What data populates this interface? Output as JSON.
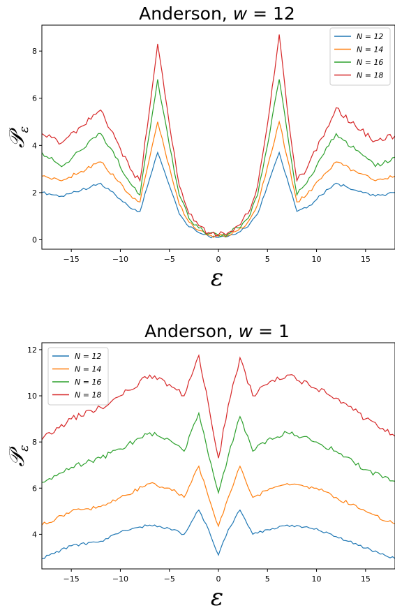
{
  "chart_data": [
    {
      "type": "line",
      "title": "Anderson, w = 12",
      "title_parts": {
        "prefix": "Anderson, ",
        "var": "w",
        "rest": " = 12"
      },
      "xlabel": "ε",
      "ylabel": "𝒫",
      "ylabel_sub": "ε",
      "xlim": [
        -18,
        18
      ],
      "ylim": [
        -0.4,
        9.1
      ],
      "xticks": [
        -15,
        -10,
        -5,
        0,
        5,
        10,
        15
      ],
      "xtick_labels": [
        "−15",
        "−10",
        "−5",
        "0",
        "5",
        "10",
        "15"
      ],
      "yticks": [
        0,
        2,
        4,
        6,
        8
      ],
      "ytick_labels": [
        "0",
        "2",
        "4",
        "6",
        "8"
      ],
      "grid": false,
      "legend_position": "top-right",
      "x": [
        -18,
        -16,
        -14,
        -12,
        -10.5,
        -9,
        -8,
        -7,
        -6.2,
        -5,
        -4,
        -3,
        -2,
        -1,
        0,
        1,
        2,
        3,
        4,
        5,
        6.2,
        7,
        8,
        9,
        10.5,
        12,
        14,
        16,
        18
      ],
      "series": [
        {
          "name": "N = 12",
          "color": "#1f77b4",
          "values": [
            2.0,
            1.85,
            2.1,
            2.4,
            1.9,
            1.35,
            1.2,
            2.6,
            3.7,
            2.3,
            1.1,
            0.55,
            0.3,
            0.15,
            0.1,
            0.15,
            0.3,
            0.55,
            1.1,
            2.3,
            3.7,
            2.6,
            1.2,
            1.35,
            1.9,
            2.4,
            2.1,
            1.85,
            2.0
          ]
        },
        {
          "name": "N = 14",
          "color": "#ff7f0e",
          "values": [
            2.7,
            2.5,
            2.9,
            3.3,
            2.6,
            1.9,
            1.6,
            3.5,
            5.0,
            3.1,
            1.5,
            0.75,
            0.4,
            0.2,
            0.15,
            0.2,
            0.4,
            0.75,
            1.5,
            3.1,
            5.0,
            3.5,
            1.6,
            1.9,
            2.6,
            3.3,
            2.9,
            2.5,
            2.7
          ]
        },
        {
          "name": "N = 16",
          "color": "#2ca02c",
          "values": [
            3.7,
            3.1,
            3.8,
            4.5,
            3.5,
            2.4,
            1.9,
            4.6,
            6.8,
            4.0,
            1.9,
            0.9,
            0.5,
            0.25,
            0.2,
            0.25,
            0.5,
            0.9,
            1.9,
            4.0,
            6.8,
            4.6,
            1.9,
            2.4,
            3.5,
            4.5,
            3.8,
            3.1,
            3.5
          ]
        },
        {
          "name": "N = 18",
          "color": "#d62728",
          "values": [
            4.5,
            4.1,
            4.8,
            5.5,
            4.3,
            3.0,
            2.5,
            5.6,
            8.3,
            4.9,
            2.3,
            1.1,
            0.6,
            0.3,
            0.2,
            0.3,
            0.6,
            1.1,
            2.3,
            4.9,
            8.7,
            5.6,
            2.5,
            3.0,
            4.3,
            5.6,
            4.8,
            4.2,
            4.4
          ]
        }
      ]
    },
    {
      "type": "line",
      "title": "Anderson, w = 1",
      "title_parts": {
        "prefix": "Anderson, ",
        "var": "w",
        "rest": " = 1"
      },
      "xlabel": "ε",
      "ylabel": "𝒫",
      "ylabel_sub": "ε",
      "xlim": [
        -18,
        18
      ],
      "ylim": [
        2.5,
        12.3
      ],
      "xticks": [
        -15,
        -10,
        -5,
        0,
        5,
        10,
        15
      ],
      "xtick_labels": [
        "−15",
        "−10",
        "−5",
        "0",
        "5",
        "10",
        "15"
      ],
      "yticks": [
        4,
        6,
        8,
        10,
        12
      ],
      "ytick_labels": [
        "4",
        "6",
        "8",
        "10",
        "12"
      ],
      "grid": false,
      "legend_position": "top-left",
      "x": [
        -18,
        -15,
        -12,
        -10,
        -7,
        -5,
        -3.5,
        -2,
        -1,
        0,
        1,
        2.2,
        3.5,
        5,
        7,
        10,
        12,
        15,
        18
      ],
      "series": [
        {
          "name": "N = 12",
          "color": "#1f77b4",
          "values": [
            2.95,
            3.5,
            3.7,
            4.1,
            4.4,
            4.25,
            4.0,
            5.05,
            4.2,
            3.1,
            4.2,
            5.05,
            4.0,
            4.2,
            4.4,
            4.25,
            3.9,
            3.4,
            2.95
          ]
        },
        {
          "name": "N = 14",
          "color": "#ff7f0e",
          "values": [
            4.4,
            5.0,
            5.2,
            5.6,
            6.2,
            6.0,
            5.6,
            6.95,
            5.6,
            4.35,
            5.6,
            6.95,
            5.6,
            5.9,
            6.2,
            6.0,
            5.6,
            5.0,
            4.45
          ]
        },
        {
          "name": "N = 16",
          "color": "#2ca02c",
          "values": [
            6.25,
            6.9,
            7.3,
            7.7,
            8.4,
            8.1,
            7.6,
            9.25,
            7.4,
            5.8,
            7.4,
            9.1,
            7.6,
            8.1,
            8.4,
            8.0,
            7.6,
            6.8,
            6.3
          ]
        },
        {
          "name": "N = 18",
          "color": "#d62728",
          "values": [
            8.1,
            9.0,
            9.5,
            10.0,
            10.9,
            10.5,
            10.0,
            11.75,
            9.6,
            7.3,
            9.6,
            11.65,
            10.0,
            10.5,
            10.9,
            10.3,
            9.9,
            9.0,
            8.25
          ]
        }
      ]
    }
  ]
}
